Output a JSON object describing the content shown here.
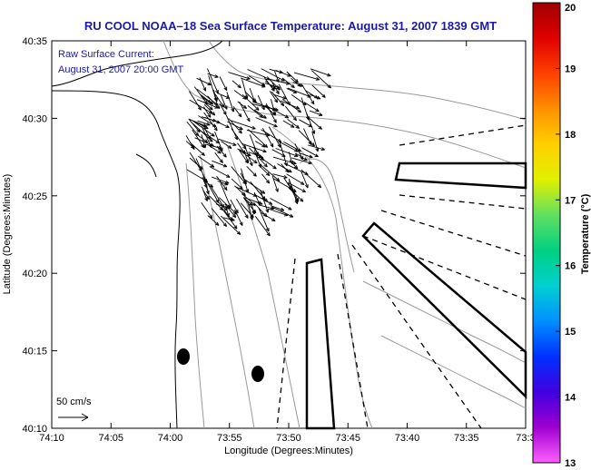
{
  "title": "RU COOL  NOAA–18  Sea Surface Temperature:  August 31, 2007 1839 GMT",
  "annotation": {
    "line1": "Raw Surface Current:",
    "line2": "August 31, 2007 20:00 GMT"
  },
  "scale_label": "50 cm/s",
  "xlabel": "Longitude (Degrees:Minutes)",
  "ylabel": "Latitude (Degrees:Minutes)",
  "x_ticks": [
    "74:10",
    "74:05",
    "74:00",
    "73:55",
    "73:50",
    "73:45",
    "73:40",
    "73:35",
    "73:3"
  ],
  "y_ticks": [
    "40:35",
    "40:30",
    "40:25",
    "40:20",
    "40:15",
    "40:10"
  ],
  "colorbar": {
    "label": "Temperature (°C)",
    "ticks": [
      "20",
      "19",
      "18",
      "17",
      "16",
      "15",
      "14",
      "13"
    ],
    "colors": [
      "#a00000",
      "#e00000",
      "#ff4000",
      "#ff9000",
      "#ffd000",
      "#e0f000",
      "#60e060",
      "#00d080",
      "#00d0d0",
      "#0090ff",
      "#0030ff",
      "#4000e0",
      "#a000d0",
      "#ff60ff"
    ]
  }
}
